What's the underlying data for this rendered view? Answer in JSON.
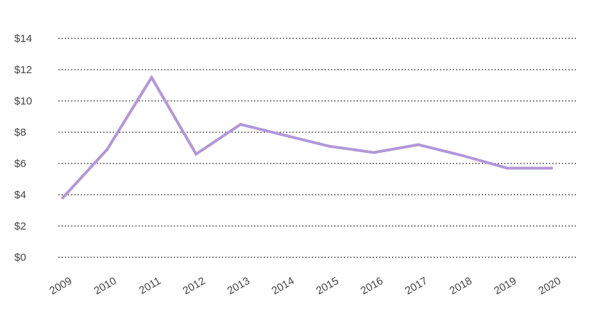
{
  "chart_data": {
    "type": "line",
    "title": "",
    "xlabel": "",
    "ylabel": "",
    "categories": [
      "2009",
      "2010",
      "2011",
      "2012",
      "2013",
      "2014",
      "2015",
      "2016",
      "2017",
      "2018",
      "2019",
      "2020"
    ],
    "y_ticks": [
      0,
      2,
      4,
      6,
      8,
      10,
      12,
      14
    ],
    "y_tick_labels": [
      "$0",
      "$2",
      "$4",
      "$6",
      "$8",
      "$10",
      "$12",
      "$14"
    ],
    "ylim": [
      0,
      14
    ],
    "grid": true,
    "grid_style": "dotted horizontal",
    "legend": "none",
    "series": [
      {
        "color": "#b198d8",
        "values": [
          3.8,
          6.9,
          11.5,
          6.6,
          8.5,
          7.8,
          7.1,
          6.7,
          7.2,
          6.5,
          5.7,
          5.7
        ]
      }
    ]
  }
}
